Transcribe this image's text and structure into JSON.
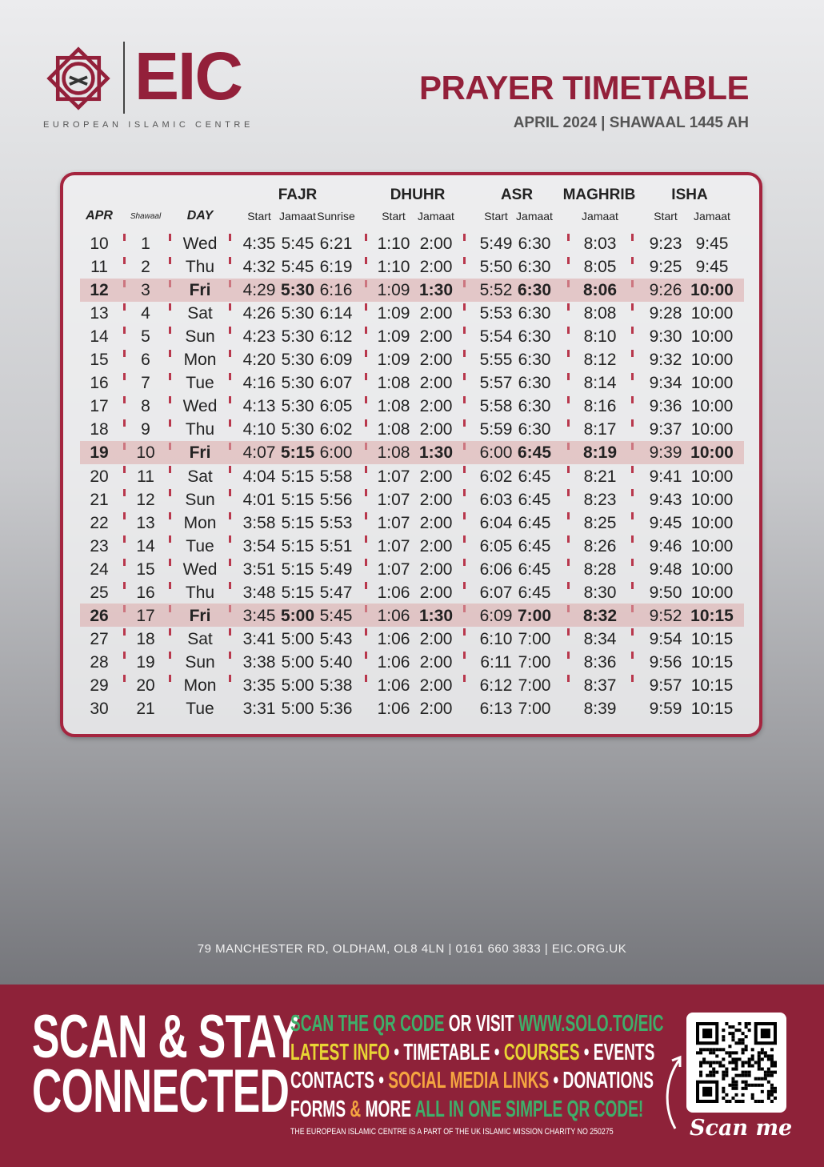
{
  "brand": {
    "name": "EIC",
    "full_name": "EUROPEAN ISLAMIC CENTRE",
    "color": "#93203a"
  },
  "header": {
    "title": "PRAYER TIMETABLE",
    "subtitle": "APRIL 2024 | SHAWAAL 1445 AH"
  },
  "table": {
    "groups": [
      "FAJR",
      "DHUHR",
      "ASR",
      "MAGHRIB",
      "ISHA"
    ],
    "columns": [
      "APR",
      "Shawaal",
      "DAY",
      "Start",
      "Jamaat",
      "Sunrise",
      "Start",
      "Jamaat",
      "Start",
      "Jamaat",
      "Jamaat",
      "Start",
      "Jamaat"
    ],
    "highlight_color": "#dcaaaa",
    "rows": [
      [
        "10",
        "1",
        "Wed",
        "4:35",
        "5:45",
        "6:21",
        "1:10",
        "2:00",
        "5:49",
        "6:30",
        "8:03",
        "9:23",
        "9:45"
      ],
      [
        "11",
        "2",
        "Thu",
        "4:32",
        "5:45",
        "6:19",
        "1:10",
        "2:00",
        "5:50",
        "6:30",
        "8:05",
        "9:25",
        "9:45"
      ],
      [
        "12",
        "3",
        "Fri",
        "4:29",
        "5:30",
        "6:16",
        "1:09",
        "1:30",
        "5:52",
        "6:30",
        "8:06",
        "9:26",
        "10:00"
      ],
      [
        "13",
        "4",
        "Sat",
        "4:26",
        "5:30",
        "6:14",
        "1:09",
        "2:00",
        "5:53",
        "6:30",
        "8:08",
        "9:28",
        "10:00"
      ],
      [
        "14",
        "5",
        "Sun",
        "4:23",
        "5:30",
        "6:12",
        "1:09",
        "2:00",
        "5:54",
        "6:30",
        "8:10",
        "9:30",
        "10:00"
      ],
      [
        "15",
        "6",
        "Mon",
        "4:20",
        "5:30",
        "6:09",
        "1:09",
        "2:00",
        "5:55",
        "6:30",
        "8:12",
        "9:32",
        "10:00"
      ],
      [
        "16",
        "7",
        "Tue",
        "4:16",
        "5:30",
        "6:07",
        "1:08",
        "2:00",
        "5:57",
        "6:30",
        "8:14",
        "9:34",
        "10:00"
      ],
      [
        "17",
        "8",
        "Wed",
        "4:13",
        "5:30",
        "6:05",
        "1:08",
        "2:00",
        "5:58",
        "6:30",
        "8:16",
        "9:36",
        "10:00"
      ],
      [
        "18",
        "9",
        "Thu",
        "4:10",
        "5:30",
        "6:02",
        "1:08",
        "2:00",
        "5:59",
        "6:30",
        "8:17",
        "9:37",
        "10:00"
      ],
      [
        "19",
        "10",
        "Fri",
        "4:07",
        "5:15",
        "6:00",
        "1:08",
        "1:30",
        "6:00",
        "6:45",
        "8:19",
        "9:39",
        "10:00"
      ],
      [
        "20",
        "11",
        "Sat",
        "4:04",
        "5:15",
        "5:58",
        "1:07",
        "2:00",
        "6:02",
        "6:45",
        "8:21",
        "9:41",
        "10:00"
      ],
      [
        "21",
        "12",
        "Sun",
        "4:01",
        "5:15",
        "5:56",
        "1:07",
        "2:00",
        "6:03",
        "6:45",
        "8:23",
        "9:43",
        "10:00"
      ],
      [
        "22",
        "13",
        "Mon",
        "3:58",
        "5:15",
        "5:53",
        "1:07",
        "2:00",
        "6:04",
        "6:45",
        "8:25",
        "9:45",
        "10:00"
      ],
      [
        "23",
        "14",
        "Tue",
        "3:54",
        "5:15",
        "5:51",
        "1:07",
        "2:00",
        "6:05",
        "6:45",
        "8:26",
        "9:46",
        "10:00"
      ],
      [
        "24",
        "15",
        "Wed",
        "3:51",
        "5:15",
        "5:49",
        "1:07",
        "2:00",
        "6:06",
        "6:45",
        "8:28",
        "9:48",
        "10:00"
      ],
      [
        "25",
        "16",
        "Thu",
        "3:48",
        "5:15",
        "5:47",
        "1:06",
        "2:00",
        "6:07",
        "6:45",
        "8:30",
        "9:50",
        "10:00"
      ],
      [
        "26",
        "17",
        "Fri",
        "3:45",
        "5:00",
        "5:45",
        "1:06",
        "1:30",
        "6:09",
        "7:00",
        "8:32",
        "9:52",
        "10:15"
      ],
      [
        "27",
        "18",
        "Sat",
        "3:41",
        "5:00",
        "5:43",
        "1:06",
        "2:00",
        "6:10",
        "7:00",
        "8:34",
        "9:54",
        "10:15"
      ],
      [
        "28",
        "19",
        "Sun",
        "3:38",
        "5:00",
        "5:40",
        "1:06",
        "2:00",
        "6:11",
        "7:00",
        "8:36",
        "9:56",
        "10:15"
      ],
      [
        "29",
        "20",
        "Mon",
        "3:35",
        "5:00",
        "5:38",
        "1:06",
        "2:00",
        "6:12",
        "7:00",
        "8:37",
        "9:57",
        "10:15"
      ],
      [
        "30",
        "21",
        "Tue",
        "3:31",
        "5:00",
        "5:36",
        "1:06",
        "2:00",
        "6:13",
        "7:00",
        "8:39",
        "9:59",
        "10:15"
      ]
    ]
  },
  "address": "79 MANCHESTER RD, OLDHAM, OL8 4LN | 0161 660 3833 | EIC.ORG.UK",
  "footer": {
    "headline_1": "SCAN & STAY",
    "headline_2": "CONNECTED",
    "colors": {
      "green": "#3fae6a",
      "yellow": "#e8d534",
      "orange": "#f5a540",
      "white": "#ffffff",
      "background": "#8e2239"
    },
    "lines": [
      [
        {
          "t": "SCAN THE QR CODE ",
          "c": "green"
        },
        {
          "t": "OR VISIT ",
          "c": "white"
        },
        {
          "t": "WWW.SOLO.TO/EIC",
          "c": "green"
        }
      ],
      [
        {
          "t": "LATEST INFO",
          "c": "yellow"
        },
        {
          "t": " • TIMETABLE • ",
          "c": "white"
        },
        {
          "t": "COURSES",
          "c": "yellow"
        },
        {
          "t": " • EVENTS",
          "c": "white"
        }
      ],
      [
        {
          "t": "CONTACTS • ",
          "c": "white"
        },
        {
          "t": "SOCIAL MEDIA LINKS",
          "c": "orange"
        },
        {
          "t": " • DONATIONS",
          "c": "white"
        }
      ],
      [
        {
          "t": "FORMS ",
          "c": "white"
        },
        {
          "t": "& ",
          "c": "orange"
        },
        {
          "t": "MORE ",
          "c": "white"
        },
        {
          "t": "ALL IN ONE SIMPLE QR CODE!",
          "c": "green"
        }
      ]
    ],
    "charity": "THE EUROPEAN ISLAMIC CENTRE IS A PART OF THE UK ISLAMIC MISSION CHARITY NO 250275",
    "scan_me": "Scan me"
  }
}
